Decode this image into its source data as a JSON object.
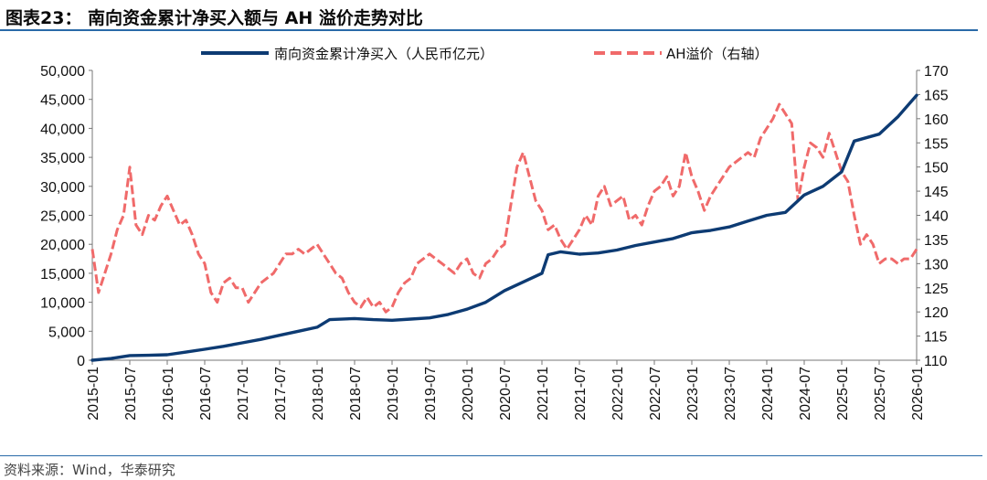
{
  "header": {
    "title": "图表23：  南向资金累计净买入额与 AH 溢价走势对比"
  },
  "footer": {
    "source": "资料来源：Wind，华泰研究"
  },
  "colors": {
    "navy": "#0d3b73",
    "red": "#f06a6a",
    "rule": "#2a6aa8"
  },
  "chart_data": {
    "type": "line",
    "grid": false,
    "legend_position": "top",
    "x_ticks": [
      "2015-01",
      "2015-07",
      "2016-01",
      "2016-07",
      "2017-01",
      "2017-07",
      "2018-01",
      "2018-07",
      "2019-01",
      "2019-07",
      "2020-01",
      "2020-07",
      "2021-01",
      "2021-07",
      "2022-01",
      "2022-07",
      "2023-01",
      "2023-07",
      "2024-01",
      "2024-07",
      "2025-01",
      "2025-07",
      "2026-01"
    ],
    "y_left_ticks": [
      "0",
      "5,000",
      "10,000",
      "15,000",
      "20,000",
      "25,000",
      "30,000",
      "35,000",
      "40,000",
      "45,000",
      "50,000"
    ],
    "y_left_range": [
      0,
      50000
    ],
    "y_right_ticks": [
      "110",
      "115",
      "120",
      "125",
      "130",
      "135",
      "140",
      "145",
      "150",
      "155",
      "160",
      "165",
      "170"
    ],
    "y_right_range": [
      110,
      170
    ],
    "series": [
      {
        "name": "南向资金累计净买入（人民币亿元）",
        "axis": "left",
        "color": "#0d3b73",
        "style": "solid",
        "x": [
          "2015-01",
          "2015-04",
          "2015-07",
          "2015-10",
          "2016-01",
          "2016-04",
          "2016-07",
          "2016-10",
          "2017-01",
          "2017-04",
          "2017-07",
          "2017-10",
          "2018-01",
          "2018-03",
          "2018-07",
          "2018-10",
          "2019-01",
          "2019-04",
          "2019-07",
          "2019-10",
          "2020-01",
          "2020-04",
          "2020-07",
          "2020-10",
          "2021-01",
          "2021-02",
          "2021-04",
          "2021-07",
          "2021-10",
          "2022-01",
          "2022-04",
          "2022-07",
          "2022-10",
          "2023-01",
          "2023-04",
          "2023-07",
          "2023-10",
          "2024-01",
          "2024-04",
          "2024-07",
          "2024-10",
          "2025-01",
          "2025-03",
          "2025-07",
          "2025-10",
          "2026-01"
        ],
        "values": [
          0,
          300,
          800,
          850,
          950,
          1400,
          1900,
          2400,
          3000,
          3600,
          4300,
          5000,
          5700,
          7000,
          7200,
          7000,
          6900,
          7100,
          7300,
          7900,
          8800,
          10000,
          12000,
          13500,
          15000,
          18200,
          18700,
          18300,
          18500,
          19000,
          19800,
          20400,
          21000,
          22000,
          22400,
          23000,
          24000,
          25000,
          25500,
          28500,
          30000,
          32500,
          37800,
          39000,
          42000,
          45700
        ]
      },
      {
        "name": "AH溢价（右轴）",
        "axis": "right",
        "color": "#f06a6a",
        "style": "dashed",
        "x": [
          "2015-01",
          "2015-02",
          "2015-03",
          "2015-04",
          "2015-05",
          "2015-06",
          "2015-07",
          "2015-08",
          "2015-09",
          "2015-10",
          "2015-11",
          "2015-12",
          "2016-01",
          "2016-02",
          "2016-03",
          "2016-04",
          "2016-05",
          "2016-06",
          "2016-07",
          "2016-08",
          "2016-09",
          "2016-10",
          "2016-11",
          "2016-12",
          "2017-01",
          "2017-02",
          "2017-03",
          "2017-04",
          "2017-05",
          "2017-06",
          "2017-07",
          "2017-08",
          "2017-09",
          "2017-10",
          "2017-11",
          "2017-12",
          "2018-01",
          "2018-02",
          "2018-03",
          "2018-04",
          "2018-05",
          "2018-06",
          "2018-07",
          "2018-08",
          "2018-09",
          "2018-10",
          "2018-11",
          "2018-12",
          "2019-01",
          "2019-02",
          "2019-03",
          "2019-04",
          "2019-05",
          "2019-06",
          "2019-07",
          "2019-08",
          "2019-09",
          "2019-10",
          "2019-11",
          "2019-12",
          "2020-01",
          "2020-02",
          "2020-03",
          "2020-04",
          "2020-05",
          "2020-06",
          "2020-07",
          "2020-08",
          "2020-09",
          "2020-10",
          "2020-11",
          "2020-12",
          "2021-01",
          "2021-02",
          "2021-03",
          "2021-04",
          "2021-05",
          "2021-06",
          "2021-07",
          "2021-08",
          "2021-09",
          "2021-10",
          "2021-11",
          "2021-12",
          "2022-01",
          "2022-02",
          "2022-03",
          "2022-04",
          "2022-05",
          "2022-06",
          "2022-07",
          "2022-08",
          "2022-09",
          "2022-10",
          "2022-11",
          "2022-12",
          "2023-01",
          "2023-02",
          "2023-03",
          "2023-04",
          "2023-05",
          "2023-06",
          "2023-07",
          "2023-08",
          "2023-09",
          "2023-10",
          "2023-11",
          "2023-12",
          "2024-01",
          "2024-02",
          "2024-03",
          "2024-04",
          "2024-05",
          "2024-06",
          "2024-07",
          "2024-08",
          "2024-09",
          "2024-10",
          "2024-11",
          "2024-12",
          "2025-01",
          "2025-02",
          "2025-03",
          "2025-04",
          "2025-05",
          "2025-06",
          "2025-07",
          "2025-08",
          "2025-09",
          "2025-10",
          "2025-11",
          "2025-12",
          "2026-01"
        ],
        "values": [
          133,
          124,
          128,
          132,
          137,
          140,
          150,
          138,
          136,
          140,
          139,
          142,
          144,
          141,
          138,
          139,
          136,
          132,
          130,
          124,
          122,
          126,
          127,
          125,
          125,
          122,
          124,
          126,
          127,
          128,
          130,
          132,
          132,
          133,
          132,
          133,
          134,
          132,
          130,
          128,
          127,
          124,
          122,
          121,
          123,
          121,
          122,
          120,
          121,
          124,
          126,
          127,
          130,
          131,
          132,
          131,
          130,
          129,
          128,
          130,
          131,
          128,
          127,
          130,
          131,
          133,
          134,
          142,
          150,
          153,
          148,
          143,
          141,
          137,
          138,
          135,
          133,
          135,
          137,
          140,
          138,
          144,
          146,
          142,
          143,
          144,
          139,
          140,
          138,
          142,
          145,
          146,
          148,
          144,
          146,
          153,
          148,
          145,
          141,
          144,
          146,
          148,
          150,
          151,
          152,
          153,
          152,
          156,
          158,
          160,
          163,
          161,
          159,
          143,
          150,
          155,
          154,
          152,
          157,
          153,
          149,
          147,
          140,
          134,
          136,
          134,
          130,
          131,
          131,
          130,
          131,
          131,
          133
        ]
      }
    ]
  }
}
